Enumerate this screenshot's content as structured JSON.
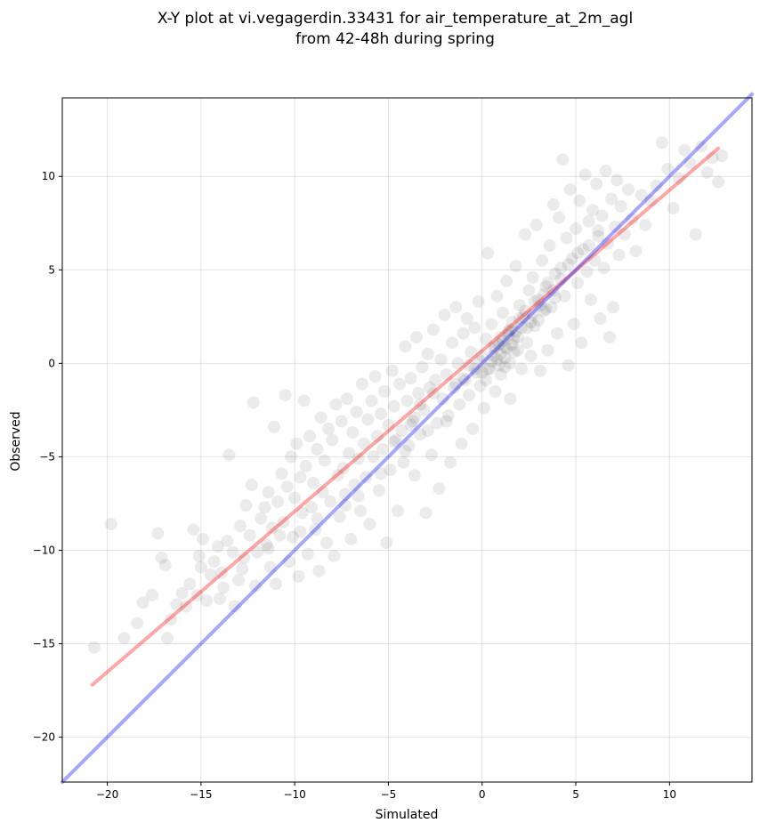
{
  "chart_data": {
    "type": "scatter",
    "title_line1": "X-Y plot at vi.vegagerdin.33431 for air_temperature_at_2m_agl",
    "title_line2": "from 42-48h during spring",
    "xlabel": "Simulated",
    "ylabel": "Observed",
    "xlim": [
      -22.4,
      14.4
    ],
    "ylim": [
      -22.4,
      14.2
    ],
    "xticks": [
      -20,
      -15,
      -10,
      -5,
      0,
      5,
      10
    ],
    "yticks": [
      -20,
      -15,
      -10,
      -5,
      0,
      5,
      10
    ],
    "xtick_labels": [
      "−20",
      "−15",
      "−10",
      "−5",
      "0",
      "5",
      "10"
    ],
    "ytick_labels": [
      "−20",
      "−15",
      "−10",
      "−5",
      "0",
      "5",
      "10"
    ],
    "grid": true,
    "point_color": "#000000",
    "point_opacity": 0.08,
    "points": [
      [
        -20.7,
        -15.2
      ],
      [
        -19.8,
        -8.6
      ],
      [
        -19.1,
        -14.7
      ],
      [
        -18.4,
        -13.9
      ],
      [
        -18.1,
        -12.8
      ],
      [
        -17.6,
        -12.4
      ],
      [
        -17.3,
        -9.1
      ],
      [
        -17.1,
        -10.4
      ],
      [
        -16.9,
        -10.8
      ],
      [
        -16.8,
        -14.7
      ],
      [
        -16.6,
        -13.7
      ],
      [
        -16.3,
        -12.9
      ],
      [
        -16.0,
        -12.3
      ],
      [
        -15.8,
        -13.0
      ],
      [
        -15.6,
        -11.8
      ],
      [
        -15.4,
        -8.9
      ],
      [
        -15.2,
        -12.4
      ],
      [
        -15.1,
        -10.3
      ],
      [
        -15.0,
        -10.9
      ],
      [
        -14.9,
        -9.4
      ],
      [
        -14.7,
        -12.7
      ],
      [
        -14.5,
        -11.3
      ],
      [
        -14.3,
        -10.6
      ],
      [
        -14.1,
        -9.8
      ],
      [
        -13.9,
        -11.2
      ],
      [
        -13.8,
        -12.0
      ],
      [
        -13.6,
        -9.5
      ],
      [
        -13.5,
        -4.9
      ],
      [
        -13.3,
        -10.1
      ],
      [
        -13.2,
        -13.0
      ],
      [
        -13.0,
        -11.6
      ],
      [
        -12.9,
        -8.7
      ],
      [
        -12.7,
        -10.4
      ],
      [
        -12.6,
        -7.6
      ],
      [
        -12.4,
        -9.2
      ],
      [
        -12.3,
        -6.5
      ],
      [
        -12.2,
        -2.1
      ],
      [
        -12.1,
        -11.9
      ],
      [
        -12.0,
        -10.1
      ],
      [
        -11.8,
        -8.3
      ],
      [
        -11.6,
        -7.7
      ],
      [
        -11.5,
        -9.7
      ],
      [
        -11.4,
        -6.9
      ],
      [
        -11.3,
        -10.9
      ],
      [
        -11.2,
        -8.8
      ],
      [
        -11.1,
        -3.4
      ],
      [
        -11.0,
        -11.8
      ],
      [
        -10.9,
        -7.4
      ],
      [
        -10.8,
        -9.2
      ],
      [
        -10.7,
        -5.9
      ],
      [
        -10.6,
        -8.5
      ],
      [
        -10.5,
        -1.7
      ],
      [
        -10.4,
        -6.6
      ],
      [
        -10.3,
        -10.6
      ],
      [
        -10.2,
        -5.0
      ],
      [
        -10.1,
        -9.3
      ],
      [
        -10.0,
        -7.2
      ],
      [
        -9.9,
        -4.3
      ],
      [
        -9.8,
        -11.4
      ],
      [
        -9.7,
        -6.1
      ],
      [
        -9.6,
        -8.0
      ],
      [
        -9.5,
        -2.0
      ],
      [
        -9.4,
        -5.5
      ],
      [
        -9.3,
        -10.2
      ],
      [
        -9.2,
        -3.9
      ],
      [
        -9.1,
        -7.7
      ],
      [
        -9.0,
        -6.4
      ],
      [
        -8.9,
        -8.9
      ],
      [
        -8.8,
        -4.6
      ],
      [
        -8.7,
        -11.1
      ],
      [
        -8.6,
        -2.9
      ],
      [
        -8.5,
        -6.9
      ],
      [
        -8.4,
        -5.2
      ],
      [
        -8.3,
        -9.6
      ],
      [
        -8.2,
        -3.5
      ],
      [
        -8.1,
        -7.4
      ],
      [
        -8.0,
        -4.1
      ],
      [
        -7.9,
        -10.3
      ],
      [
        -7.8,
        -2.2
      ],
      [
        -7.7,
        -6.0
      ],
      [
        -7.6,
        -8.2
      ],
      [
        -7.5,
        -3.1
      ],
      [
        -7.4,
        -5.6
      ],
      [
        -7.3,
        -7.0
      ],
      [
        -7.2,
        -1.9
      ],
      [
        -7.1,
        -4.8
      ],
      [
        -7.0,
        -9.4
      ],
      [
        -6.9,
        -3.7
      ],
      [
        -6.8,
        -6.5
      ],
      [
        -6.7,
        -2.6
      ],
      [
        -6.6,
        -5.1
      ],
      [
        -6.5,
        -7.9
      ],
      [
        -6.4,
        -1.1
      ],
      [
        -6.3,
        -4.3
      ],
      [
        -6.2,
        -6.1
      ],
      [
        -6.1,
        -3.0
      ],
      [
        -6.0,
        -8.6
      ],
      [
        -5.9,
        -2.0
      ],
      [
        -5.8,
        -5.0
      ],
      [
        -5.7,
        -0.7
      ],
      [
        -5.6,
        -3.9
      ],
      [
        -5.5,
        -6.8
      ],
      [
        -5.4,
        -2.7
      ],
      [
        -5.3,
        -4.6
      ],
      [
        -5.2,
        -1.5
      ],
      [
        -5.1,
        -9.6
      ],
      [
        -5.0,
        -3.3
      ],
      [
        -4.9,
        -5.7
      ],
      [
        -4.8,
        -0.4
      ],
      [
        -4.7,
        -2.3
      ],
      [
        -4.6,
        -4.1
      ],
      [
        -4.5,
        -7.9
      ],
      [
        -4.4,
        -1.1
      ],
      [
        -4.3,
        -3.6
      ],
      [
        -4.2,
        -5.3
      ],
      [
        -4.1,
        0.9
      ],
      [
        -4.0,
        -2.0
      ],
      [
        -3.9,
        -4.4
      ],
      [
        -3.8,
        -0.8
      ],
      [
        -3.7,
        -3.1
      ],
      [
        -3.6,
        -6.0
      ],
      [
        -3.5,
        1.4
      ],
      [
        -3.4,
        -1.6
      ],
      [
        -3.3,
        -3.8
      ],
      [
        -3.2,
        -0.2
      ],
      [
        -3.1,
        -2.5
      ],
      [
        -3.0,
        -8.0
      ],
      [
        -2.9,
        0.5
      ],
      [
        -2.8,
        -1.3
      ],
      [
        -2.7,
        -4.9
      ],
      [
        -2.6,
        1.8
      ],
      [
        -2.5,
        -0.9
      ],
      [
        -2.4,
        -3.2
      ],
      [
        -2.3,
        -6.7
      ],
      [
        -2.2,
        0.2
      ],
      [
        -2.1,
        -1.9
      ],
      [
        -2.0,
        2.6
      ],
      [
        -1.9,
        -0.6
      ],
      [
        -1.8,
        -2.8
      ],
      [
        -1.7,
        -5.3
      ],
      [
        -1.6,
        1.1
      ],
      [
        -1.5,
        -1.3
      ],
      [
        -1.4,
        3.0
      ],
      [
        -1.3,
        0.0
      ],
      [
        -1.2,
        -2.2
      ],
      [
        -1.1,
        -4.3
      ],
      [
        -1.0,
        1.6
      ],
      [
        -0.9,
        -0.9
      ],
      [
        -0.8,
        2.4
      ],
      [
        -0.7,
        -1.7
      ],
      [
        -0.6,
        0.6
      ],
      [
        -0.5,
        -3.5
      ],
      [
        -0.4,
        1.9
      ],
      [
        -0.3,
        -0.5
      ],
      [
        -0.2,
        3.3
      ],
      [
        -0.1,
        -1.2
      ],
      [
        0.0,
        0.4
      ],
      [
        0.1,
        -2.4
      ],
      [
        0.2,
        1.3
      ],
      [
        0.3,
        5.9
      ],
      [
        0.4,
        -0.3
      ],
      [
        0.5,
        2.1
      ],
      [
        0.6,
        0.8
      ],
      [
        0.7,
        -1.5
      ],
      [
        0.8,
        3.6
      ],
      [
        0.9,
        1.0
      ],
      [
        1.0,
        -0.6
      ],
      [
        1.1,
        2.7
      ],
      [
        1.2,
        0.3
      ],
      [
        1.3,
        4.4
      ],
      [
        1.4,
        1.7
      ],
      [
        1.5,
        -1.9
      ],
      [
        1.6,
        2.2
      ],
      [
        1.7,
        0.6
      ],
      [
        1.8,
        5.2
      ],
      [
        1.9,
        1.4
      ],
      [
        2.0,
        3.1
      ],
      [
        2.1,
        -0.3
      ],
      [
        2.2,
        2.5
      ],
      [
        2.3,
        6.9
      ],
      [
        2.4,
        1.1
      ],
      [
        2.5,
        3.9
      ],
      [
        2.6,
        0.4
      ],
      [
        2.7,
        4.6
      ],
      [
        2.8,
        2.0
      ],
      [
        2.9,
        7.4
      ],
      [
        3.0,
        3.4
      ],
      [
        3.1,
        -0.4
      ],
      [
        3.2,
        5.5
      ],
      [
        3.3,
        2.8
      ],
      [
        3.4,
        4.1
      ],
      [
        3.5,
        0.7
      ],
      [
        3.6,
        6.3
      ],
      [
        3.7,
        3.0
      ],
      [
        3.8,
        8.5
      ],
      [
        3.9,
        4.8
      ],
      [
        4.0,
        1.6
      ],
      [
        4.1,
        7.8
      ],
      [
        4.2,
        5.1
      ],
      [
        4.3,
        10.9
      ],
      [
        4.4,
        3.6
      ],
      [
        4.5,
        6.7
      ],
      [
        4.6,
        -0.1
      ],
      [
        4.7,
        9.3
      ],
      [
        4.8,
        5.6
      ],
      [
        4.9,
        2.1
      ],
      [
        5.0,
        7.2
      ],
      [
        5.1,
        4.3
      ],
      [
        5.2,
        8.7
      ],
      [
        5.3,
        1.1
      ],
      [
        5.4,
        6.1
      ],
      [
        5.5,
        10.1
      ],
      [
        5.6,
        4.9
      ],
      [
        5.7,
        7.6
      ],
      [
        5.8,
        3.4
      ],
      [
        5.9,
        8.2
      ],
      [
        6.0,
        5.5
      ],
      [
        6.1,
        9.6
      ],
      [
        6.2,
        6.8
      ],
      [
        6.3,
        2.4
      ],
      [
        6.4,
        7.9
      ],
      [
        6.5,
        5.1
      ],
      [
        6.6,
        10.3
      ],
      [
        6.7,
        6.4
      ],
      [
        6.8,
        1.4
      ],
      [
        6.9,
        8.8
      ],
      [
        7.0,
        3.0
      ],
      [
        7.1,
        7.3
      ],
      [
        7.2,
        9.8
      ],
      [
        7.3,
        5.8
      ],
      [
        7.4,
        8.4
      ],
      [
        7.6,
        6.9
      ],
      [
        7.8,
        9.3
      ],
      [
        8.0,
        7.7
      ],
      [
        8.2,
        6.0
      ],
      [
        8.5,
        9.0
      ],
      [
        8.7,
        7.4
      ],
      [
        9.0,
        8.7
      ],
      [
        9.3,
        9.5
      ],
      [
        9.6,
        11.8
      ],
      [
        9.9,
        10.4
      ],
      [
        10.2,
        8.3
      ],
      [
        10.5,
        9.9
      ],
      [
        10.8,
        11.4
      ],
      [
        11.1,
        10.7
      ],
      [
        11.4,
        6.9
      ],
      [
        11.7,
        11.6
      ],
      [
        12.0,
        10.2
      ],
      [
        12.3,
        11.0
      ],
      [
        12.6,
        9.7
      ],
      [
        12.8,
        11.1
      ],
      [
        -14.0,
        -12.6
      ],
      [
        -9.7,
        -9.0
      ],
      [
        -7.3,
        -7.6
      ],
      [
        -6.6,
        -7.1
      ],
      [
        -4.1,
        -4.7
      ],
      [
        -3.6,
        -2.9
      ],
      [
        -2.9,
        -3.6
      ],
      [
        -1.9,
        -3.1
      ],
      [
        -0.7,
        -0.1
      ],
      [
        0.2,
        -0.9
      ],
      [
        0.5,
        0.1
      ],
      [
        0.7,
        0.9
      ],
      [
        0.8,
        0.2
      ],
      [
        1.0,
        0.5
      ],
      [
        1.1,
        1.2
      ],
      [
        1.2,
        -0.2
      ],
      [
        1.3,
        0.8
      ],
      [
        1.4,
        1.5
      ],
      [
        1.5,
        0.0
      ],
      [
        1.6,
        1.0
      ],
      [
        1.8,
        1.7
      ],
      [
        1.9,
        0.7
      ],
      [
        2.1,
        1.9
      ],
      [
        2.3,
        2.8
      ],
      [
        2.6,
        2.2
      ],
      [
        2.8,
        3.3
      ],
      [
        3.0,
        2.3
      ],
      [
        3.3,
        3.7
      ],
      [
        3.5,
        4.3
      ],
      [
        3.8,
        3.9
      ],
      [
        4.2,
        4.5
      ],
      [
        4.6,
        5.3
      ],
      [
        5.1,
        5.9
      ],
      [
        5.7,
        6.3
      ],
      [
        6.2,
        7.1
      ],
      [
        -8.8,
        -8.3
      ],
      [
        -11.4,
        -9.9
      ],
      [
        -12.8,
        -11.0
      ],
      [
        -5.4,
        -5.9
      ],
      [
        -4.7,
        -4.2
      ],
      [
        -3.8,
        -3.3
      ],
      [
        -3.3,
        -2.2
      ],
      [
        -2.6,
        -1.6
      ],
      [
        -1.4,
        -1.1
      ],
      [
        -1.0,
        -0.8
      ],
      [
        -0.4,
        -0.3
      ],
      [
        -0.1,
        0.1
      ],
      [
        0.0,
        -0.5
      ],
      [
        0.3,
        -0.3
      ],
      [
        0.6,
        0.4
      ],
      [
        0.9,
        -0.1
      ],
      [
        1.0,
        1.4
      ],
      [
        1.2,
        0.9
      ],
      [
        1.5,
        1.8
      ],
      [
        1.7,
        1.3
      ],
      [
        2.0,
        2.4
      ],
      [
        2.4,
        1.9
      ],
      [
        2.7,
        2.6
      ],
      [
        3.1,
        3.1
      ],
      [
        3.4,
        2.9
      ],
      [
        3.9,
        3.5
      ]
    ],
    "series": [
      {
        "values": [
          [
            -20.8,
            -17.2
          ],
          [
            12.6,
            11.5
          ]
        ],
        "color": "#ff0000",
        "opacity": 0.35
      },
      {
        "values": [
          [
            -22.4,
            -22.4
          ],
          [
            14.4,
            14.4
          ]
        ],
        "color": "#0000ff",
        "opacity": 0.35
      }
    ]
  }
}
